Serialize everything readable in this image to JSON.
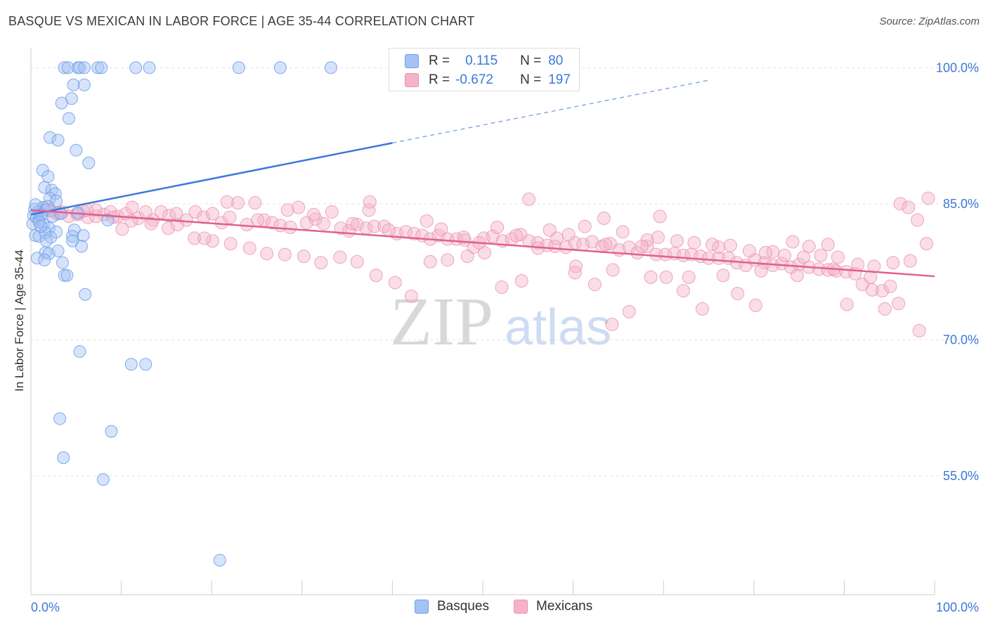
{
  "title": "BASQUE VS MEXICAN IN LABOR FORCE | AGE 35-44 CORRELATION CHART",
  "source": "Source: ZipAtlas.com",
  "watermark": {
    "zip": "ZIP",
    "atlas": "atlas"
  },
  "legend": {
    "basques": {
      "r_label": "R =",
      "r_value": "0.115",
      "n_label": "N =",
      "n_value": "80"
    },
    "mexicans": {
      "r_label": "R =",
      "r_value": "-0.672",
      "n_label": "N =",
      "n_value": "197"
    }
  },
  "bottom_legend": {
    "basques": "Basques",
    "mexicans": "Mexicans"
  },
  "colors": {
    "basques_fill": "#a4c2f4",
    "basques_stroke": "#6d9eeb",
    "basques_line": "#3c78d8",
    "mexicans_fill": "#f4b3c9",
    "mexicans_stroke": "#e991b0",
    "mexicans_line": "#e06090",
    "axis_text": "#3c78d8",
    "grid": "#e3e3e3"
  },
  "chart_data": {
    "type": "scatter",
    "title": "BASQUE VS MEXICAN IN LABOR FORCE | AGE 35-44 CORRELATION CHART",
    "xlabel": "",
    "ylabel": "In Labor Force | Age 35-44",
    "xlim": [
      0,
      100
    ],
    "ylim": [
      41.9,
      102.5
    ],
    "x_tick_labels": [
      "0.0%",
      "100.0%"
    ],
    "y_ticks": [
      55,
      70,
      85,
      100
    ],
    "y_tick_labels": [
      "55.0%",
      "70.0%",
      "85.0%",
      "100.0%"
    ],
    "grid": true,
    "legend_position": "top-center",
    "series": [
      {
        "name": "Basques",
        "r": 0.115,
        "n": 80,
        "trend": {
          "x": [
            0,
            40
          ],
          "y": [
            83.8,
            91.7
          ],
          "dashed_to": [
            75,
            100
          ]
        },
        "points": [
          [
            3.7,
            100
          ],
          [
            4.1,
            100
          ],
          [
            5.2,
            100
          ],
          [
            5.4,
            100
          ],
          [
            5.9,
            100
          ],
          [
            7.4,
            100
          ],
          [
            7.8,
            100
          ],
          [
            11.6,
            100
          ],
          [
            13.1,
            100
          ],
          [
            23,
            100
          ],
          [
            27.6,
            100
          ],
          [
            33.2,
            100
          ],
          [
            4.7,
            98.1
          ],
          [
            5.9,
            98.1
          ],
          [
            4.5,
            96.6
          ],
          [
            3.4,
            96.1
          ],
          [
            4.2,
            94.4
          ],
          [
            2.1,
            92.3
          ],
          [
            3,
            92
          ],
          [
            5,
            90.9
          ],
          [
            6.4,
            89.5
          ],
          [
            1.3,
            88.7
          ],
          [
            1.9,
            88
          ],
          [
            1.5,
            86.8
          ],
          [
            2.3,
            86.5
          ],
          [
            2.7,
            86.1
          ],
          [
            2.1,
            85.6
          ],
          [
            2.8,
            85.3
          ],
          [
            1.3,
            84.6
          ],
          [
            0.4,
            84.4
          ],
          [
            0.8,
            84.1
          ],
          [
            1.6,
            84.3
          ],
          [
            0.3,
            83.7
          ],
          [
            0.6,
            83.5
          ],
          [
            0.9,
            83.2
          ],
          [
            1.2,
            83.8
          ],
          [
            2.4,
            83.6
          ],
          [
            3.3,
            83.9
          ],
          [
            5.2,
            84
          ],
          [
            8.5,
            83.2
          ],
          [
            0.2,
            82.8
          ],
          [
            1.4,
            82.7
          ],
          [
            2,
            82.3
          ],
          [
            4.8,
            82.1
          ],
          [
            0.5,
            81.5
          ],
          [
            0.9,
            81.4
          ],
          [
            1.6,
            81.8
          ],
          [
            2.2,
            81.3
          ],
          [
            2.8,
            81.9
          ],
          [
            4.6,
            81.4
          ],
          [
            5.8,
            81.5
          ],
          [
            1.7,
            80.9
          ],
          [
            4.6,
            80.9
          ],
          [
            5.6,
            80.3
          ],
          [
            1.6,
            79.6
          ],
          [
            2,
            79.5
          ],
          [
            3,
            79.8
          ],
          [
            0.7,
            79
          ],
          [
            1.5,
            78.8
          ],
          [
            3.5,
            78.5
          ],
          [
            3.7,
            77.1
          ],
          [
            4,
            77.1
          ],
          [
            6,
            75
          ],
          [
            5.4,
            68.7
          ],
          [
            11.1,
            67.3
          ],
          [
            12.7,
            67.3
          ],
          [
            3.2,
            61.3
          ],
          [
            8.9,
            59.9
          ],
          [
            3.6,
            57
          ],
          [
            8,
            54.6
          ],
          [
            20.9,
            45.7
          ],
          [
            0.9,
            83
          ],
          [
            1.1,
            82.5
          ],
          [
            0.5,
            84.9
          ],
          [
            1.9,
            84.7
          ]
        ]
      },
      {
        "name": "Mexicans",
        "r": -0.672,
        "n": 197,
        "trend": {
          "x": [
            0,
            100
          ],
          "y": [
            84.3,
            77.0
          ]
        },
        "points": [
          [
            1.5,
            84.5
          ],
          [
            2.2,
            84.2
          ],
          [
            2.9,
            83.9
          ],
          [
            3.5,
            84.1
          ],
          [
            4.2,
            83.6
          ],
          [
            5.1,
            83.9
          ],
          [
            5.8,
            84.2
          ],
          [
            6.3,
            83.5
          ],
          [
            7.2,
            84.3
          ],
          [
            8.1,
            83.8
          ],
          [
            8.8,
            84.1
          ],
          [
            9.6,
            83.6
          ],
          [
            10.5,
            83.9
          ],
          [
            11.2,
            84.6
          ],
          [
            11.9,
            83.4
          ],
          [
            12.7,
            84.1
          ],
          [
            13.5,
            83.2
          ],
          [
            14.4,
            84.1
          ],
          [
            15.3,
            83.7
          ],
          [
            16.1,
            83.9
          ],
          [
            17.2,
            83.2
          ],
          [
            18.2,
            84.1
          ],
          [
            19.1,
            83.5
          ],
          [
            20.1,
            83.9
          ],
          [
            21.1,
            82.9
          ],
          [
            22,
            83.5
          ],
          [
            22.9,
            85.1
          ],
          [
            23.9,
            82.7
          ],
          [
            24.8,
            85.1
          ],
          [
            25.8,
            83.2
          ],
          [
            26.7,
            82.9
          ],
          [
            27.6,
            82.6
          ],
          [
            28.7,
            82.4
          ],
          [
            29.6,
            84.6
          ],
          [
            30.5,
            82.9
          ],
          [
            31.5,
            83.3
          ],
          [
            32.4,
            82.8
          ],
          [
            33.3,
            84.1
          ],
          [
            34.3,
            82.3
          ],
          [
            35.2,
            82
          ],
          [
            36.1,
            82.7
          ],
          [
            37.1,
            82.3
          ],
          [
            38,
            82.5
          ],
          [
            39.1,
            82.5
          ],
          [
            40.5,
            81.7
          ],
          [
            41.5,
            81.9
          ],
          [
            42.4,
            81.7
          ],
          [
            43.3,
            81.5
          ],
          [
            44.2,
            81.1
          ],
          [
            45.1,
            81.5
          ],
          [
            46.1,
            81.1
          ],
          [
            47.1,
            81.1
          ],
          [
            48,
            81
          ],
          [
            49,
            80.2
          ],
          [
            50.1,
            81.2
          ],
          [
            51.1,
            81.4
          ],
          [
            52.2,
            80.9
          ],
          [
            53.2,
            81.1
          ],
          [
            54.2,
            81.6
          ],
          [
            55.1,
            80.9
          ],
          [
            56.1,
            80.7
          ],
          [
            57.1,
            80.4
          ],
          [
            58,
            80.3
          ],
          [
            59.2,
            80.2
          ],
          [
            60.2,
            80.7
          ],
          [
            61.1,
            80.5
          ],
          [
            62.1,
            80.8
          ],
          [
            63.2,
            80.3
          ],
          [
            64.1,
            80.6
          ],
          [
            65.1,
            79.9
          ],
          [
            66.2,
            80.2
          ],
          [
            67.1,
            79.6
          ],
          [
            68.2,
            80.3
          ],
          [
            69.2,
            79.4
          ],
          [
            70.2,
            79.4
          ],
          [
            71.2,
            79.5
          ],
          [
            72.2,
            79.3
          ],
          [
            73.1,
            79.4
          ],
          [
            74.1,
            79.2
          ],
          [
            75,
            79
          ],
          [
            76.1,
            79
          ],
          [
            77.2,
            79
          ],
          [
            78.1,
            78.5
          ],
          [
            79.1,
            78.2
          ],
          [
            80.1,
            78.8
          ],
          [
            81.2,
            78.5
          ],
          [
            82.1,
            78.2
          ],
          [
            83.1,
            78.4
          ],
          [
            84.1,
            78
          ],
          [
            85,
            78.3
          ],
          [
            86.1,
            78
          ],
          [
            87.2,
            77.8
          ],
          [
            88.2,
            77.7
          ],
          [
            89.1,
            77.6
          ],
          [
            90.2,
            77.5
          ],
          [
            91.2,
            77.3
          ],
          [
            92,
            76.1
          ],
          [
            93.1,
            75.5
          ],
          [
            94.2,
            75.4
          ],
          [
            95.1,
            75.9
          ],
          [
            96.2,
            85
          ],
          [
            97.1,
            84.6
          ],
          [
            98.1,
            83.2
          ],
          [
            99.3,
            85.6
          ],
          [
            98.3,
            71
          ],
          [
            96,
            74
          ],
          [
            94.5,
            73.4
          ],
          [
            92.9,
            76.9
          ],
          [
            90.3,
            73.9
          ],
          [
            88.2,
            80.5
          ],
          [
            86.1,
            80.3
          ],
          [
            84.3,
            80.8
          ],
          [
            82.1,
            79.7
          ],
          [
            80.2,
            73.8
          ],
          [
            78.2,
            75.1
          ],
          [
            76.1,
            80.2
          ],
          [
            74.3,
            73.4
          ],
          [
            72.2,
            75.4
          ],
          [
            70.3,
            76.9
          ],
          [
            68.2,
            81
          ],
          [
            66.2,
            73.1
          ],
          [
            64.3,
            71.7
          ],
          [
            62.4,
            76.1
          ],
          [
            60.3,
            78.1
          ],
          [
            58.2,
            81.2
          ],
          [
            56.1,
            80.1
          ],
          [
            54.3,
            76.5
          ],
          [
            52.1,
            75.8
          ],
          [
            50.2,
            79.6
          ],
          [
            48.3,
            79.2
          ],
          [
            46.1,
            78.8
          ],
          [
            44.2,
            78.6
          ],
          [
            42.1,
            74.8
          ],
          [
            40.3,
            76.3
          ],
          [
            38.2,
            77.1
          ],
          [
            36.1,
            78.6
          ],
          [
            34.2,
            79.1
          ],
          [
            32.1,
            78.5
          ],
          [
            30.2,
            79.2
          ],
          [
            28.1,
            79.4
          ],
          [
            26.1,
            79.5
          ],
          [
            24.2,
            80.1
          ],
          [
            22.1,
            80.6
          ],
          [
            20.1,
            80.9
          ],
          [
            18.1,
            81.2
          ],
          [
            15.2,
            82.3
          ],
          [
            13.3,
            82.8
          ],
          [
            11.1,
            83.1
          ],
          [
            9.1,
            83.5
          ],
          [
            7.2,
            83.6
          ],
          [
            5.2,
            83.8
          ],
          [
            3.1,
            84
          ],
          [
            2.1,
            84.3
          ],
          [
            6.2,
            84.3
          ],
          [
            10.1,
            82.2
          ],
          [
            16.2,
            82.7
          ],
          [
            19.2,
            81.2
          ],
          [
            25.1,
            83.2
          ],
          [
            28.4,
            84.3
          ],
          [
            31.3,
            83.8
          ],
          [
            35.6,
            82.8
          ],
          [
            37.4,
            84.3
          ],
          [
            39.6,
            82.1
          ],
          [
            43.8,
            83.1
          ],
          [
            45.4,
            82.2
          ],
          [
            47.9,
            81.3
          ],
          [
            49.6,
            80.7
          ],
          [
            51.6,
            82.4
          ],
          [
            53.7,
            81.5
          ],
          [
            57.4,
            82.1
          ],
          [
            59.5,
            81.6
          ],
          [
            61.3,
            82.5
          ],
          [
            63.6,
            80.5
          ],
          [
            65.5,
            81.9
          ],
          [
            67.6,
            80.3
          ],
          [
            69.4,
            81.3
          ],
          [
            71.5,
            80.9
          ],
          [
            73.4,
            80.7
          ],
          [
            75.4,
            80.5
          ],
          [
            77.4,
            80.4
          ],
          [
            79.5,
            79.8
          ],
          [
            81.3,
            79.6
          ],
          [
            83.4,
            79.3
          ],
          [
            85.5,
            79.1
          ],
          [
            87.4,
            79.3
          ],
          [
            89.3,
            79.1
          ],
          [
            91.5,
            78.3
          ],
          [
            93.3,
            78.1
          ],
          [
            95.4,
            78.5
          ],
          [
            97.3,
            78.7
          ],
          [
            99.1,
            80.6
          ],
          [
            60.2,
            77.4
          ],
          [
            64.4,
            77.7
          ],
          [
            68.6,
            76.9
          ],
          [
            72.8,
            76.9
          ],
          [
            76.6,
            77.1
          ],
          [
            80.8,
            77.6
          ],
          [
            84.8,
            77.1
          ],
          [
            88.8,
            77.8
          ],
          [
            21.7,
            85.2
          ],
          [
            37.5,
            85.2
          ],
          [
            55.1,
            85.5
          ],
          [
            63.4,
            83.4
          ],
          [
            69.6,
            83.6
          ]
        ]
      }
    ]
  }
}
